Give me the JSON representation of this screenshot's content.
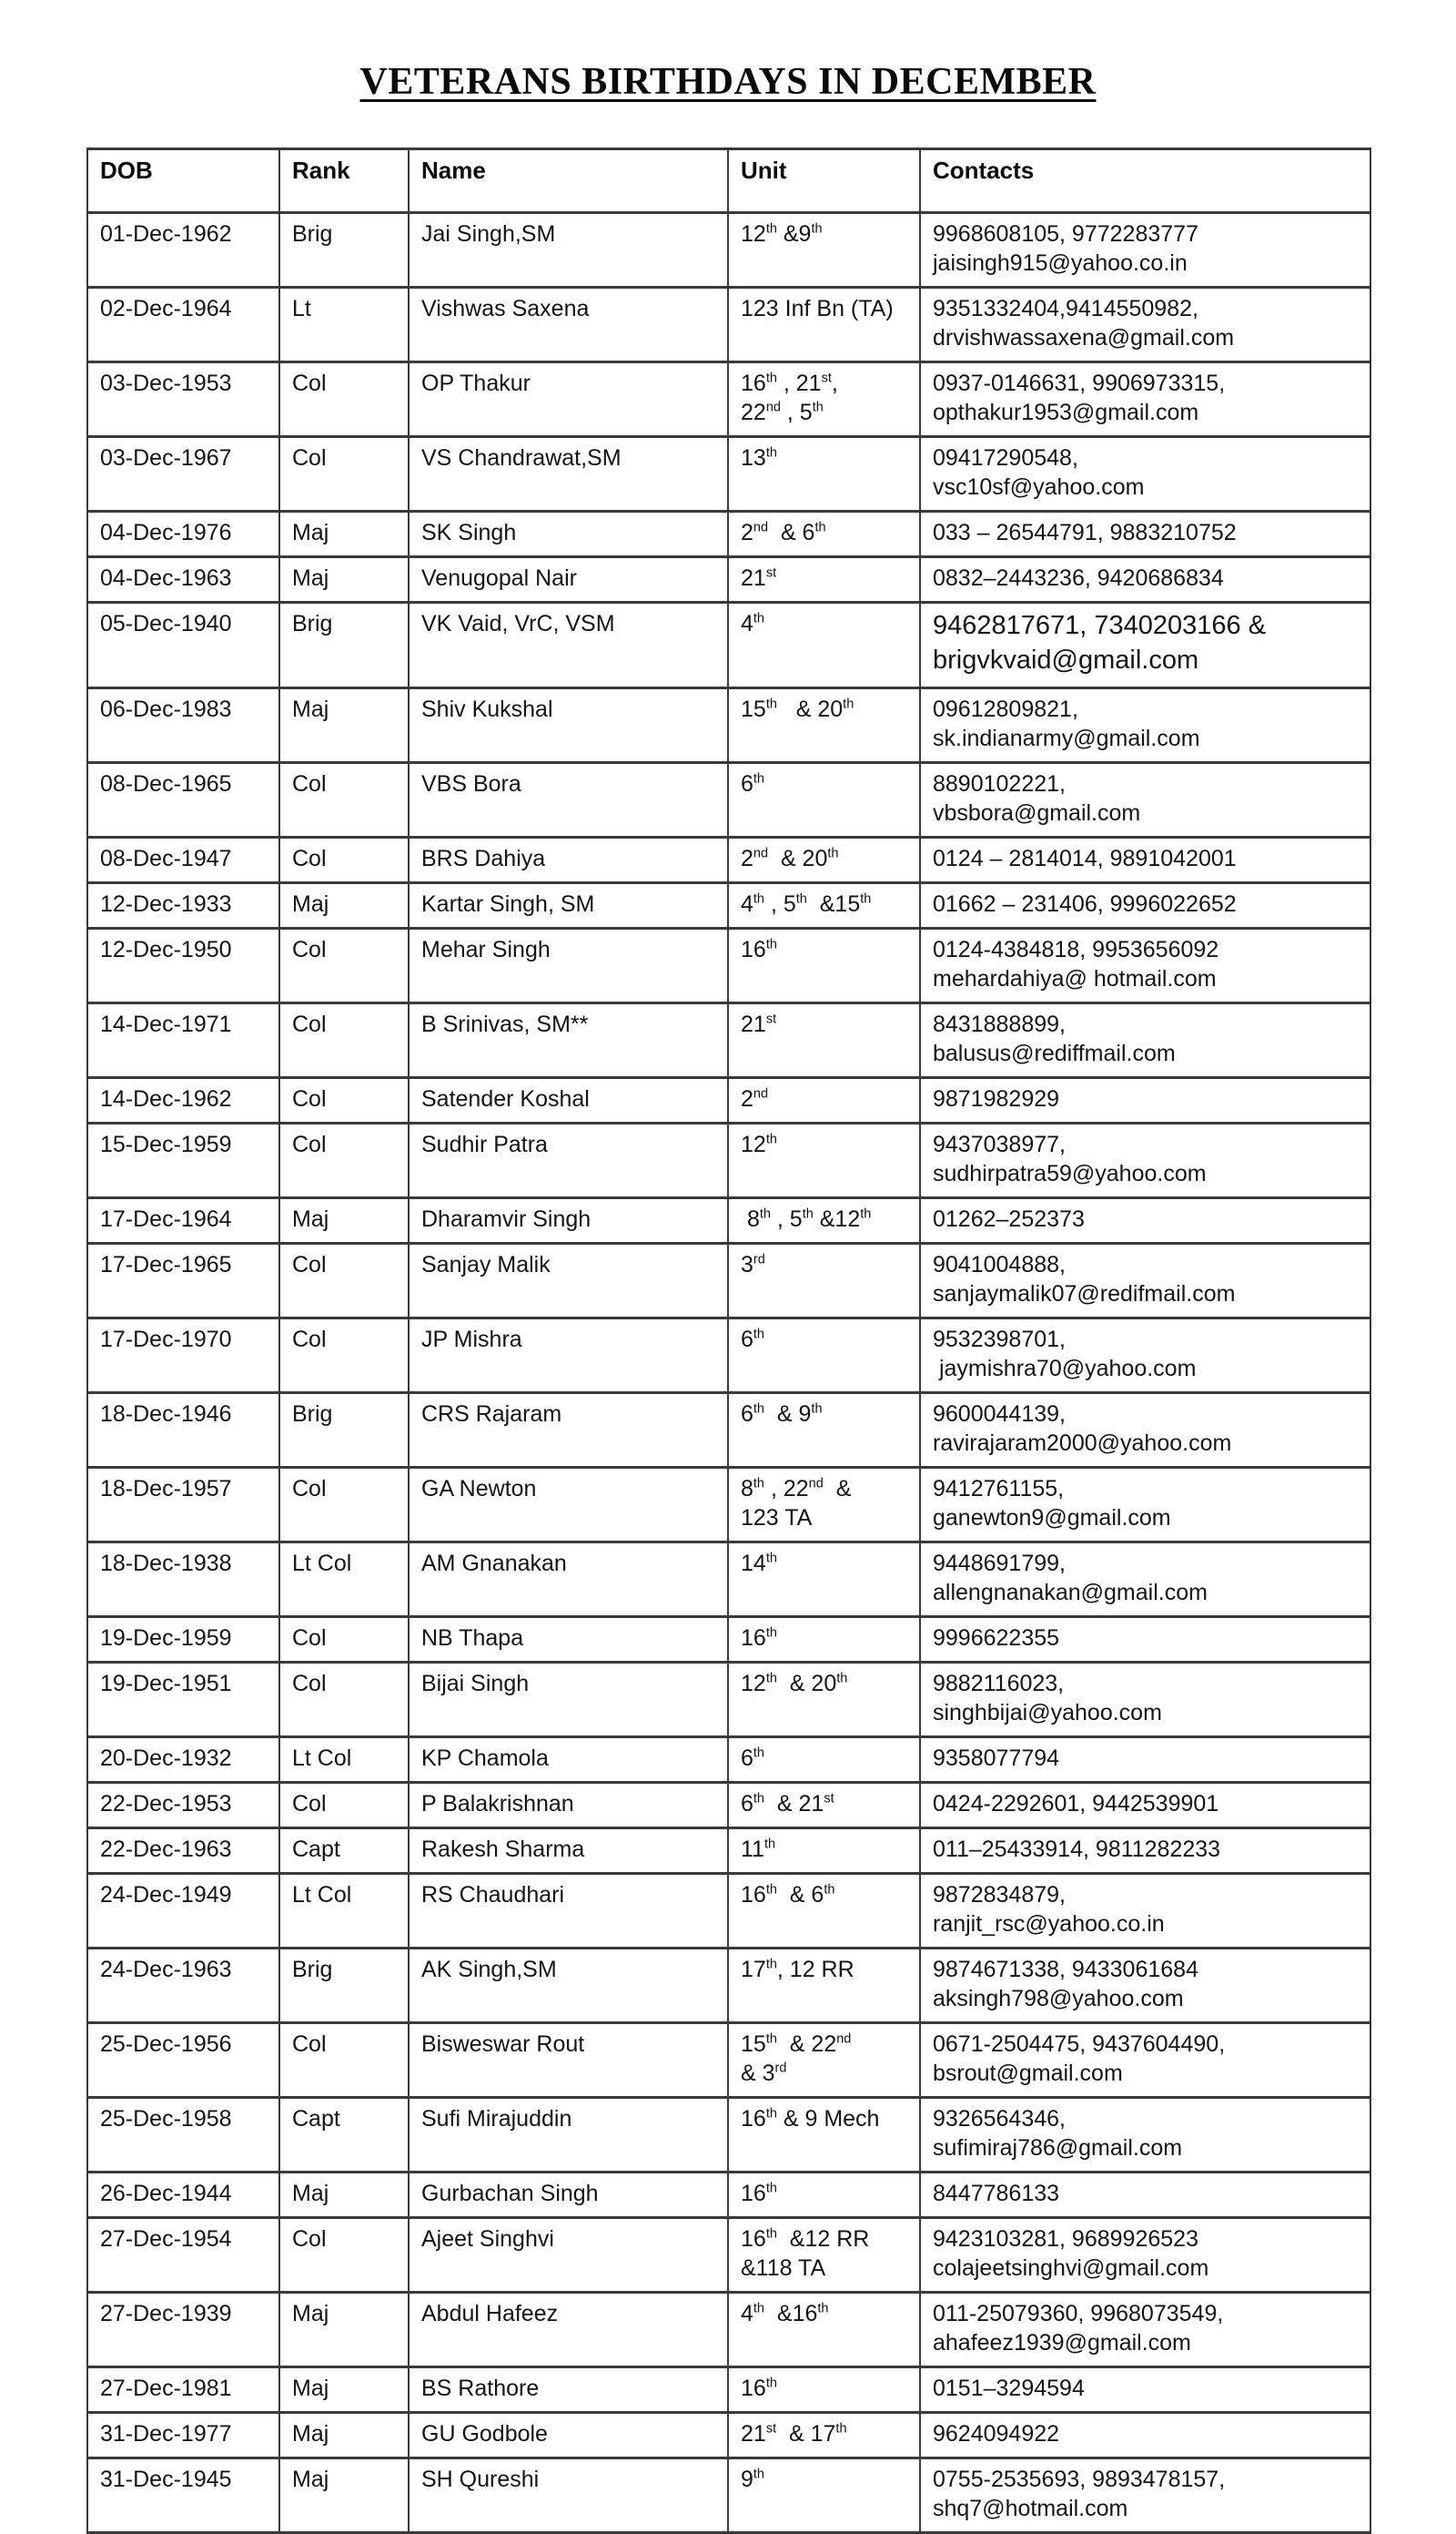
{
  "page": {
    "title": "VETERANS BIRTHDAYS IN DECEMBER"
  },
  "table": {
    "columns": [
      "DOB",
      "Rank",
      "Name",
      "Unit",
      "Contacts"
    ],
    "rows": [
      {
        "dob": "01-Dec-1962",
        "rank": "Brig",
        "name": "Jai Singh,SM",
        "unit": "12th &9th",
        "contacts": "9968608105, 9772283777\njaisingh915@yahoo.co.in"
      },
      {
        "dob": "02-Dec-1964",
        "rank": "Lt",
        "name": "Vishwas Saxena",
        "unit": "123 Inf Bn (TA)",
        "contacts": "9351332404,9414550982,\ndrvishwassaxena@gmail.com"
      },
      {
        "dob": "03-Dec-1953",
        "rank": "Col",
        "name": "OP Thakur",
        "unit": "16th , 21st,\n22nd , 5th",
        "contacts": "0937-0146631, 9906973315,\nopthakur1953@gmail.com"
      },
      {
        "dob": "03-Dec-1967",
        "rank": "Col",
        "name": "VS Chandrawat,SM",
        "unit": "13th",
        "contacts": "09417290548,\nvsc10sf@yahoo.com"
      },
      {
        "dob": "04-Dec-1976",
        "rank": "Maj",
        "name": "SK Singh",
        "unit": "2nd  & 6th",
        "contacts": "033 – 26544791, 9883210752"
      },
      {
        "dob": "04-Dec-1963",
        "rank": "Maj",
        "name": "Venugopal Nair",
        "unit": "21st",
        "contacts": "0832–2443236, 9420686834"
      },
      {
        "dob": "05-Dec-1940",
        "rank": "Brig",
        "name": "VK Vaid, VrC, VSM",
        "unit": "4th",
        "contacts": "9462817671, 7340203166 &\nbrigvkvaid@gmail.com",
        "large_contacts": true
      },
      {
        "dob": "06-Dec-1983",
        "rank": "Maj",
        "name": "Shiv Kukshal",
        "unit": "15th   & 20th",
        "contacts": "09612809821,\nsk.indianarmy@gmail.com"
      },
      {
        "dob": "08-Dec-1965",
        "rank": "Col",
        "name": "VBS Bora",
        "unit": "6th",
        "contacts": "8890102221,\nvbsbora@gmail.com"
      },
      {
        "dob": "08-Dec-1947",
        "rank": "Col",
        "name": "BRS Dahiya",
        "unit": "2nd  & 20th",
        "contacts": "0124 – 2814014, 9891042001\n"
      },
      {
        "dob": "12-Dec-1933",
        "rank": "Maj",
        "name": "Kartar Singh, SM",
        "unit": "4th , 5th  &15th",
        "contacts": "01662 – 231406, 9996022652"
      },
      {
        "dob": "12-Dec-1950",
        "rank": "Col",
        "name": "Mehar Singh",
        "unit": "16th",
        "contacts": "0124-4384818, 9953656092\nmehardahiya@ hotmail.com"
      },
      {
        "dob": "14-Dec-1971",
        "rank": "Col",
        "name": "B Srinivas, SM**",
        "unit": "21st",
        "contacts": "8431888899,\nbalusus@rediffmail.com"
      },
      {
        "dob": "14-Dec-1962",
        "rank": "Col",
        "name": "Satender Koshal",
        "unit": "2nd",
        "contacts": "9871982929"
      },
      {
        "dob": "15-Dec-1959",
        "rank": "Col",
        "name": "Sudhir Patra",
        "unit": "12th",
        "contacts": "9437038977,\nsudhirpatra59@yahoo.com"
      },
      {
        "dob": "17-Dec-1964",
        "rank": "Maj",
        "name": "Dharamvir Singh",
        "unit": " 8th , 5th &12th",
        "contacts": "01262–252373"
      },
      {
        "dob": "17-Dec-1965",
        "rank": "Col",
        "name": "Sanjay Malik",
        "unit": "3rd",
        "contacts": "9041004888,\nsanjaymalik07@redifmail.com"
      },
      {
        "dob": "17-Dec-1970",
        "rank": "Col",
        "name": "JP Mishra",
        "unit": "6th",
        "contacts": "9532398701,\n jaymishra70@yahoo.com"
      },
      {
        "dob": "18-Dec-1946",
        "rank": "Brig",
        "name": "CRS Rajaram",
        "unit": "6th  & 9th",
        "contacts": "9600044139,\nravirajaram2000@yahoo.com"
      },
      {
        "dob": "18-Dec-1957",
        "rank": "Col",
        "name": "GA Newton",
        "unit": "8th , 22nd  &\n123 TA",
        "contacts": "9412761155,\nganewton9@gmail.com"
      },
      {
        "dob": "18-Dec-1938",
        "rank": "Lt Col",
        "name": "AM Gnanakan",
        "unit": "14th",
        "contacts": "9448691799,\nallengnanakan@gmail.com"
      },
      {
        "dob": "19-Dec-1959",
        "rank": "Col",
        "name": "NB Thapa",
        "unit": "16th",
        "contacts": "9996622355\n"
      },
      {
        "dob": "19-Dec-1951",
        "rank": "Col",
        "name": "Bijai Singh",
        "unit": "12th  & 20th",
        "contacts": "9882116023,\nsinghbijai@yahoo.com"
      },
      {
        "dob": "20-Dec-1932",
        "rank": "Lt Col",
        "name": "KP Chamola",
        "unit": "6th",
        "contacts": "9358077794"
      },
      {
        "dob": "22-Dec-1953",
        "rank": "Col",
        "name": "P Balakrishnan",
        "unit": "6th  & 21st",
        "contacts": "0424-2292601, 9442539901"
      },
      {
        "dob": "22-Dec-1963",
        "rank": "Capt",
        "name": "Rakesh Sharma",
        "unit": "11th",
        "contacts": "011–25433914, 9811282233"
      },
      {
        "dob": "24-Dec-1949",
        "rank": "Lt Col",
        "name": "RS Chaudhari",
        "unit": "16th  & 6th",
        "contacts": "9872834879,\nranjit_rsc@yahoo.co.in"
      },
      {
        "dob": "24-Dec-1963",
        "rank": "Brig",
        "name": "AK Singh,SM",
        "unit": "17th, 12 RR",
        "contacts": "9874671338, 9433061684\naksingh798@yahoo.com"
      },
      {
        "dob": "25-Dec-1956",
        "rank": "Col",
        "name": "Bisweswar Rout",
        "unit": "15th  & 22nd\n& 3rd",
        "contacts": "0671-2504475, 9437604490,\nbsrout@gmail.com"
      },
      {
        "dob": "25-Dec-1958",
        "rank": "Capt",
        "name": "Sufi Mirajuddin",
        "unit": "16th & 9 Mech",
        "contacts": "9326564346,\nsufimiraj786@gmail.com\n"
      },
      {
        "dob": "26-Dec-1944",
        "rank": "Maj",
        "name": "Gurbachan Singh",
        "unit": "16th",
        "contacts": "8447786133\n"
      },
      {
        "dob": "27-Dec-1954",
        "rank": "Col",
        "name": "Ajeet Singhvi",
        "unit": "16th  &12 RR\n&118 TA",
        "contacts": "9423103281, 9689926523\ncolajeetsinghvi@gmail.com"
      },
      {
        "dob": "27-Dec-1939",
        "rank": "Maj",
        "name": "Abdul Hafeez",
        "unit": "4th  &16th",
        "contacts": "011-25079360, 9968073549,\nahafeez1939@gmail.com"
      },
      {
        "dob": "27-Dec-1981",
        "rank": "Maj",
        "name": "BS Rathore",
        "unit": "16th",
        "contacts": "0151–3294594"
      },
      {
        "dob": "31-Dec-1977",
        "rank": "Maj",
        "name": "GU Godbole",
        "unit": "21st  & 17th",
        "contacts": "9624094922\n"
      },
      {
        "dob": "31-Dec-1945",
        "rank": "Maj",
        "name": "SH Qureshi",
        "unit": "9th",
        "contacts": "0755-2535693, 9893478157,\nshq7@hotmail.com"
      }
    ]
  }
}
